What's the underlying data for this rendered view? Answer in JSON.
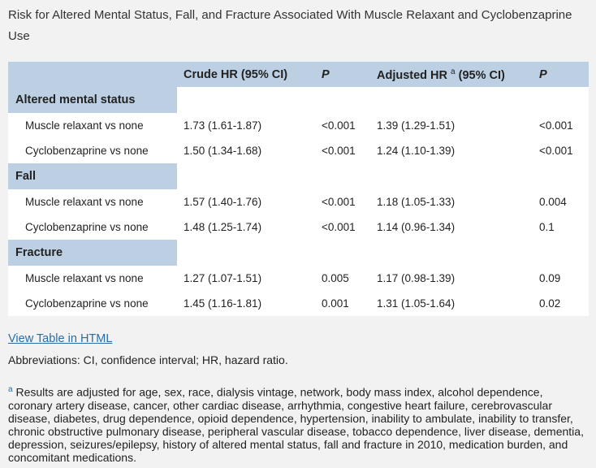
{
  "title": "Risk for Altered Mental Status, Fall, and Fracture Associated With Muscle Relaxant and Cyclobenzaprine Use",
  "table": {
    "headers": {
      "crude": "Crude HR (95% CI)",
      "p1": "P",
      "adjusted": "Adjusted HR",
      "adjusted_sup": "a",
      "adjusted_ci": "(95% CI)",
      "p2": "P"
    },
    "sections": [
      {
        "label": "Altered mental status",
        "rows": [
          {
            "label": "Muscle relaxant vs none",
            "crude": "1.73 (1.61-1.87)",
            "p1": "<0.001",
            "adjusted": "1.39 (1.29-1.51)",
            "p2": "<0.001"
          },
          {
            "label": "Cyclobenzaprine vs none",
            "crude": "1.50 (1.34-1.68)",
            "p1": "<0.001",
            "adjusted": "1.24 (1.10-1.39)",
            "p2": "<0.001"
          }
        ]
      },
      {
        "label": "Fall",
        "rows": [
          {
            "label": "Muscle relaxant vs none",
            "crude": "1.57 (1.40-1.76)",
            "p1": "<0.001",
            "adjusted": "1.18 (1.05-1.33)",
            "p2": "0.004"
          },
          {
            "label": "Cyclobenzaprine vs none",
            "crude": "1.48 (1.25-1.74)",
            "p1": "<0.001",
            "adjusted": "1.14 (0.96-1.34)",
            "p2": "0.1"
          }
        ]
      },
      {
        "label": "Fracture",
        "rows": [
          {
            "label": "Muscle relaxant vs none",
            "crude": "1.27 (1.07-1.51)",
            "p1": "0.005",
            "adjusted": "1.17 (0.98-1.39)",
            "p2": "0.09"
          },
          {
            "label": "Cyclobenzaprine vs none",
            "crude": "1.45 (1.16-1.81)",
            "p1": "0.001",
            "adjusted": "1.31 (1.05-1.64)",
            "p2": "0.02"
          }
        ]
      }
    ]
  },
  "link_text": "View Table in HTML",
  "abbreviations": "Abbreviations: CI, confidence interval; HR, hazard ratio.",
  "footnote_marker": "a",
  "footnote": "Results are adjusted for age, sex, race, dialysis vintage, network, body mass index, alcohol dependence, coronary artery disease, cancer, other cardiac disease, arrhythmia, congestive heart failure, cerebrovascular disease, diabetes, drug dependence, opioid dependence, hypertension, inability to ambulate, inability to transfer, chronic obstructive pulmonary disease, peripheral vascular disease, tobacco dependence, liver disease, dementia, depression, seizures/epilepsy, history of altered mental status, fall and fracture in 2010, medication burden, and concomitant medications."
}
